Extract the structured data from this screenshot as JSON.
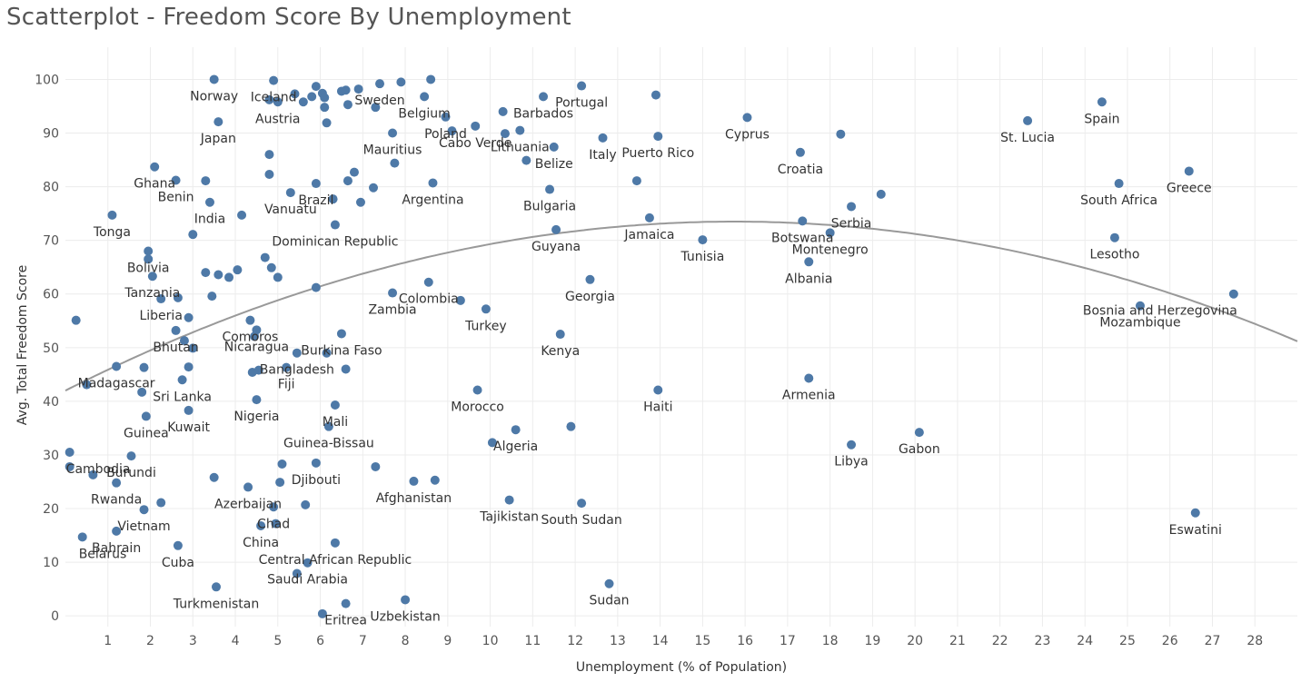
{
  "chart_data": {
    "type": "scatter",
    "title": "Scatterplot - Freedom Score By Unemployment",
    "xlabel": "Unemployment (% of Population)",
    "ylabel": "Avg. Total Freedom Score",
    "xlim": [
      0,
      29
    ],
    "ylim": [
      -2,
      106
    ],
    "x_ticks": [
      1,
      2,
      3,
      4,
      5,
      6,
      7,
      8,
      9,
      10,
      11,
      12,
      13,
      14,
      15,
      16,
      17,
      18,
      19,
      20,
      21,
      22,
      23,
      24,
      25,
      26,
      27,
      28
    ],
    "y_ticks": [
      0,
      10,
      20,
      30,
      40,
      50,
      60,
      70,
      80,
      90,
      100
    ],
    "grid": true,
    "marker_color": "#4e79a7",
    "trendline": {
      "type": "polynomial-2",
      "color": "#999999",
      "coefficients": [
        42.0,
        4.0,
        -0.127
      ]
    },
    "points": [
      {
        "x": 3.5,
        "y": 100,
        "label": "Norway"
      },
      {
        "x": 4.9,
        "y": 99.8,
        "label": "Iceland"
      },
      {
        "x": 7.4,
        "y": 99.2,
        "label": "Sweden"
      },
      {
        "x": 7.9,
        "y": 99.5,
        "label": ""
      },
      {
        "x": 8.6,
        "y": 100,
        "label": ""
      },
      {
        "x": 4.8,
        "y": 96.2,
        "label": ""
      },
      {
        "x": 5.0,
        "y": 95.8,
        "label": "Austria"
      },
      {
        "x": 5.4,
        "y": 97.3,
        "label": ""
      },
      {
        "x": 5.6,
        "y": 95.8,
        "label": ""
      },
      {
        "x": 5.8,
        "y": 96.8,
        "label": ""
      },
      {
        "x": 5.9,
        "y": 98.7,
        "label": ""
      },
      {
        "x": 6.05,
        "y": 97.4,
        "label": ""
      },
      {
        "x": 6.1,
        "y": 96.6,
        "label": ""
      },
      {
        "x": 6.1,
        "y": 94.8,
        "label": ""
      },
      {
        "x": 6.5,
        "y": 97.8,
        "label": ""
      },
      {
        "x": 6.6,
        "y": 98.0,
        "label": ""
      },
      {
        "x": 6.9,
        "y": 98.2,
        "label": ""
      },
      {
        "x": 6.65,
        "y": 95.3,
        "label": ""
      },
      {
        "x": 7.3,
        "y": 94.8,
        "label": ""
      },
      {
        "x": 6.15,
        "y": 91.9,
        "label": ""
      },
      {
        "x": 3.6,
        "y": 92.1,
        "label": "Japan"
      },
      {
        "x": 8.45,
        "y": 96.8,
        "label": "Belgium"
      },
      {
        "x": 8.95,
        "y": 93.0,
        "label": "Poland"
      },
      {
        "x": 7.7,
        "y": 90.0,
        "label": "Mauritius"
      },
      {
        "x": 9.1,
        "y": 90.4,
        "label": ""
      },
      {
        "x": 9.65,
        "y": 91.3,
        "label": "Cabo Verde"
      },
      {
        "x": 10.3,
        "y": 94.0,
        "label": ""
      },
      {
        "x": 10.35,
        "y": 89.9,
        "label": ""
      },
      {
        "x": 10.7,
        "y": 90.5,
        "label": "Lithuania"
      },
      {
        "x": 11.25,
        "y": 96.8,
        "label": "Barbados"
      },
      {
        "x": 12.15,
        "y": 98.8,
        "label": "Portugal"
      },
      {
        "x": 13.9,
        "y": 97.1,
        "label": ""
      },
      {
        "x": 11.5,
        "y": 87.4,
        "label": "Belize"
      },
      {
        "x": 12.65,
        "y": 89.1,
        "label": "Italy"
      },
      {
        "x": 13.95,
        "y": 89.4,
        "label": "Puerto Rico"
      },
      {
        "x": 16.05,
        "y": 92.9,
        "label": "Cyprus"
      },
      {
        "x": 18.25,
        "y": 89.8,
        "label": ""
      },
      {
        "x": 22.65,
        "y": 92.3,
        "label": "St. Lucia"
      },
      {
        "x": 24.4,
        "y": 95.8,
        "label": "Spain"
      },
      {
        "x": 17.3,
        "y": 86.4,
        "label": "Croatia"
      },
      {
        "x": 2.1,
        "y": 83.7,
        "label": "Ghana"
      },
      {
        "x": 2.6,
        "y": 81.2,
        "label": "Benin"
      },
      {
        "x": 3.3,
        "y": 81.1,
        "label": ""
      },
      {
        "x": 4.8,
        "y": 86.0,
        "label": ""
      },
      {
        "x": 4.8,
        "y": 82.3,
        "label": ""
      },
      {
        "x": 5.3,
        "y": 78.9,
        "label": "Vanuatu"
      },
      {
        "x": 5.9,
        "y": 80.6,
        "label": "Brazil"
      },
      {
        "x": 6.8,
        "y": 82.7,
        "label": ""
      },
      {
        "x": 6.65,
        "y": 81.1,
        "label": ""
      },
      {
        "x": 7.75,
        "y": 84.4,
        "label": ""
      },
      {
        "x": 7.25,
        "y": 79.8,
        "label": ""
      },
      {
        "x": 8.65,
        "y": 80.7,
        "label": "Argentina"
      },
      {
        "x": 6.3,
        "y": 77.7,
        "label": ""
      },
      {
        "x": 6.95,
        "y": 77.1,
        "label": ""
      },
      {
        "x": 10.85,
        "y": 84.9,
        "label": ""
      },
      {
        "x": 11.4,
        "y": 79.5,
        "label": "Bulgaria"
      },
      {
        "x": 13.45,
        "y": 81.1,
        "label": ""
      },
      {
        "x": 3.4,
        "y": 77.1,
        "label": "India"
      },
      {
        "x": 4.15,
        "y": 74.7,
        "label": ""
      },
      {
        "x": 6.35,
        "y": 72.9,
        "label": "Dominican Republic"
      },
      {
        "x": 1.1,
        "y": 74.7,
        "label": "Tonga"
      },
      {
        "x": 3.0,
        "y": 71.1,
        "label": ""
      },
      {
        "x": 1.95,
        "y": 68.0,
        "label": "Bolivia"
      },
      {
        "x": 1.95,
        "y": 66.5,
        "label": ""
      },
      {
        "x": 11.55,
        "y": 72.0,
        "label": "Guyana"
      },
      {
        "x": 13.75,
        "y": 74.2,
        "label": "Jamaica"
      },
      {
        "x": 15.0,
        "y": 70.1,
        "label": "Tunisia"
      },
      {
        "x": 17.35,
        "y": 73.6,
        "label": "Botswana"
      },
      {
        "x": 18.0,
        "y": 71.4,
        "label": "Montenegro"
      },
      {
        "x": 18.5,
        "y": 76.3,
        "label": "Serbia"
      },
      {
        "x": 19.2,
        "y": 78.6,
        "label": ""
      },
      {
        "x": 24.8,
        "y": 80.6,
        "label": "South Africa"
      },
      {
        "x": 26.45,
        "y": 82.9,
        "label": "Greece"
      },
      {
        "x": 24.7,
        "y": 70.5,
        "label": "Lesotho"
      },
      {
        "x": 17.5,
        "y": 66.0,
        "label": "Albania"
      },
      {
        "x": 2.05,
        "y": 63.3,
        "label": "Tanzania"
      },
      {
        "x": 3.3,
        "y": 64.0,
        "label": ""
      },
      {
        "x": 3.6,
        "y": 63.6,
        "label": ""
      },
      {
        "x": 3.85,
        "y": 63.1,
        "label": ""
      },
      {
        "x": 4.05,
        "y": 64.5,
        "label": ""
      },
      {
        "x": 4.7,
        "y": 66.8,
        "label": ""
      },
      {
        "x": 4.85,
        "y": 64.9,
        "label": ""
      },
      {
        "x": 5.0,
        "y": 63.1,
        "label": ""
      },
      {
        "x": 5.9,
        "y": 61.2,
        "label": ""
      },
      {
        "x": 8.55,
        "y": 62.2,
        "label": "Colombia"
      },
      {
        "x": 12.35,
        "y": 62.7,
        "label": "Georgia"
      },
      {
        "x": 27.5,
        "y": 60.0,
        "label": "Bosnia and Herzegovina"
      },
      {
        "x": 25.3,
        "y": 57.8,
        "label": "Mozambique"
      },
      {
        "x": 2.25,
        "y": 59.1,
        "label": "Liberia"
      },
      {
        "x": 2.65,
        "y": 59.3,
        "label": ""
      },
      {
        "x": 3.45,
        "y": 59.6,
        "label": ""
      },
      {
        "x": 7.7,
        "y": 60.2,
        "label": "Zambia"
      },
      {
        "x": 9.3,
        "y": 58.8,
        "label": ""
      },
      {
        "x": 9.9,
        "y": 57.2,
        "label": "Turkey"
      },
      {
        "x": 0.25,
        "y": 55.1,
        "label": ""
      },
      {
        "x": 2.9,
        "y": 55.6,
        "label": ""
      },
      {
        "x": 4.35,
        "y": 55.1,
        "label": "Comoros"
      },
      {
        "x": 2.6,
        "y": 53.2,
        "label": "Bhutan"
      },
      {
        "x": 4.5,
        "y": 53.3,
        "label": "Nicaragua"
      },
      {
        "x": 4.45,
        "y": 52.1,
        "label": ""
      },
      {
        "x": 6.5,
        "y": 52.6,
        "label": "Burkina Faso"
      },
      {
        "x": 11.65,
        "y": 52.5,
        "label": "Kenya"
      },
      {
        "x": 2.8,
        "y": 51.3,
        "label": ""
      },
      {
        "x": 3.0,
        "y": 49.9,
        "label": ""
      },
      {
        "x": 5.45,
        "y": 49.0,
        "label": "Bangladesh"
      },
      {
        "x": 6.15,
        "y": 49.0,
        "label": ""
      },
      {
        "x": 1.2,
        "y": 46.5,
        "label": "Madagascar"
      },
      {
        "x": 1.85,
        "y": 46.3,
        "label": ""
      },
      {
        "x": 2.9,
        "y": 46.4,
        "label": ""
      },
      {
        "x": 4.4,
        "y": 45.4,
        "label": ""
      },
      {
        "x": 4.55,
        "y": 45.8,
        "label": ""
      },
      {
        "x": 5.2,
        "y": 46.3,
        "label": "Fiji"
      },
      {
        "x": 6.6,
        "y": 46.0,
        "label": ""
      },
      {
        "x": 17.5,
        "y": 44.3,
        "label": "Armenia"
      },
      {
        "x": 0.5,
        "y": 43.1,
        "label": ""
      },
      {
        "x": 2.75,
        "y": 44.0,
        "label": "Sri Lanka"
      },
      {
        "x": 1.8,
        "y": 41.7,
        "label": ""
      },
      {
        "x": 4.5,
        "y": 40.3,
        "label": "Nigeria"
      },
      {
        "x": 9.7,
        "y": 42.1,
        "label": "Morocco"
      },
      {
        "x": 13.95,
        "y": 42.1,
        "label": "Haiti"
      },
      {
        "x": 6.35,
        "y": 39.3,
        "label": "Mali"
      },
      {
        "x": 2.9,
        "y": 38.3,
        "label": "Kuwait"
      },
      {
        "x": 1.9,
        "y": 37.2,
        "label": "Guinea"
      },
      {
        "x": 6.2,
        "y": 35.3,
        "label": "Guinea-Bissau"
      },
      {
        "x": 10.6,
        "y": 34.7,
        "label": "Algeria"
      },
      {
        "x": 11.9,
        "y": 35.3,
        "label": ""
      },
      {
        "x": 20.1,
        "y": 34.2,
        "label": "Gabon"
      },
      {
        "x": 10.05,
        "y": 32.3,
        "label": ""
      },
      {
        "x": 18.5,
        "y": 31.9,
        "label": "Libya"
      },
      {
        "x": 0.1,
        "y": 30.5,
        "label": "Cambodia"
      },
      {
        "x": 1.55,
        "y": 29.8,
        "label": "Burundi"
      },
      {
        "x": 0.1,
        "y": 27.8,
        "label": ""
      },
      {
        "x": 5.1,
        "y": 28.3,
        "label": ""
      },
      {
        "x": 5.9,
        "y": 28.5,
        "label": "Djibouti"
      },
      {
        "x": 7.3,
        "y": 27.8,
        "label": ""
      },
      {
        "x": 0.65,
        "y": 26.3,
        "label": ""
      },
      {
        "x": 3.5,
        "y": 25.8,
        "label": ""
      },
      {
        "x": 5.05,
        "y": 24.9,
        "label": ""
      },
      {
        "x": 8.2,
        "y": 25.1,
        "label": "Afghanistan"
      },
      {
        "x": 8.7,
        "y": 25.3,
        "label": ""
      },
      {
        "x": 1.2,
        "y": 24.8,
        "label": "Rwanda"
      },
      {
        "x": 4.3,
        "y": 24.0,
        "label": "Azerbaijan"
      },
      {
        "x": 10.45,
        "y": 21.6,
        "label": "Tajikistan"
      },
      {
        "x": 12.15,
        "y": 21.0,
        "label": "South Sudan"
      },
      {
        "x": 2.25,
        "y": 21.1,
        "label": ""
      },
      {
        "x": 5.65,
        "y": 20.7,
        "label": ""
      },
      {
        "x": 4.9,
        "y": 20.3,
        "label": "Chad"
      },
      {
        "x": 1.85,
        "y": 19.8,
        "label": "Vietnam"
      },
      {
        "x": 26.6,
        "y": 19.2,
        "label": "Eswatini"
      },
      {
        "x": 4.6,
        "y": 16.8,
        "label": "China"
      },
      {
        "x": 4.95,
        "y": 17.2,
        "label": ""
      },
      {
        "x": 1.2,
        "y": 15.8,
        "label": "Bahrain"
      },
      {
        "x": 0.4,
        "y": 14.7,
        "label": "Belarus"
      },
      {
        "x": 2.65,
        "y": 13.1,
        "label": "Cuba"
      },
      {
        "x": 6.35,
        "y": 13.6,
        "label": "Central African Republic"
      },
      {
        "x": 5.7,
        "y": 9.9,
        "label": "Saudi Arabia"
      },
      {
        "x": 5.45,
        "y": 7.9,
        "label": ""
      },
      {
        "x": 3.55,
        "y": 5.4,
        "label": "Turkmenistan"
      },
      {
        "x": 12.8,
        "y": 6.0,
        "label": "Sudan"
      },
      {
        "x": 8.0,
        "y": 3.0,
        "label": "Uzbekistan"
      },
      {
        "x": 6.6,
        "y": 2.3,
        "label": "Eritrea"
      },
      {
        "x": 6.05,
        "y": 0.4,
        "label": ""
      }
    ]
  }
}
